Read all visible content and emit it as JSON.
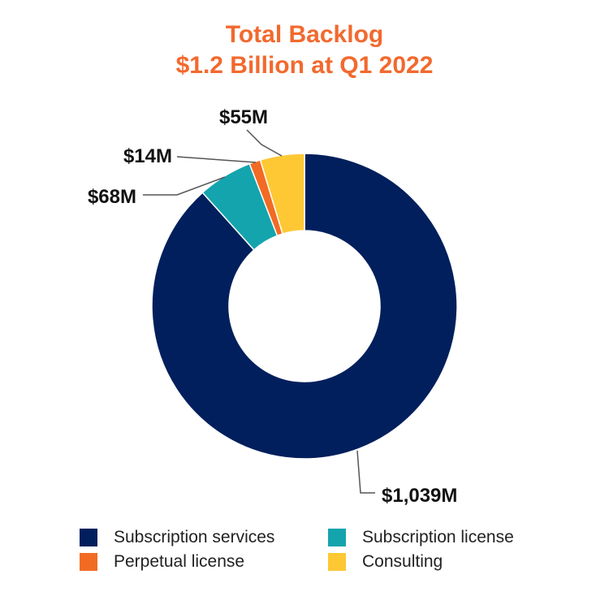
{
  "chart_data": {
    "type": "pie",
    "subtype": "donut",
    "title": "Total Backlog",
    "subtitle": "$1.2 Billion at Q1 2022",
    "slices": [
      {
        "name": "Subscription services",
        "value": 1039,
        "label": "$1,039M",
        "color": "#001f5c"
      },
      {
        "name": "Subscription license",
        "value": 68,
        "label": "$68M",
        "color": "#14a4ad"
      },
      {
        "name": "Perpetual license",
        "value": 14,
        "label": "$14M",
        "color": "#f26b24"
      },
      {
        "name": "Consulting",
        "value": 55,
        "label": "$55M",
        "color": "#fdc834"
      }
    ],
    "legend": {
      "position": "bottom",
      "items": [
        "Subscription services",
        "Subscription license",
        "Perpetual license",
        "Consulting"
      ]
    }
  }
}
